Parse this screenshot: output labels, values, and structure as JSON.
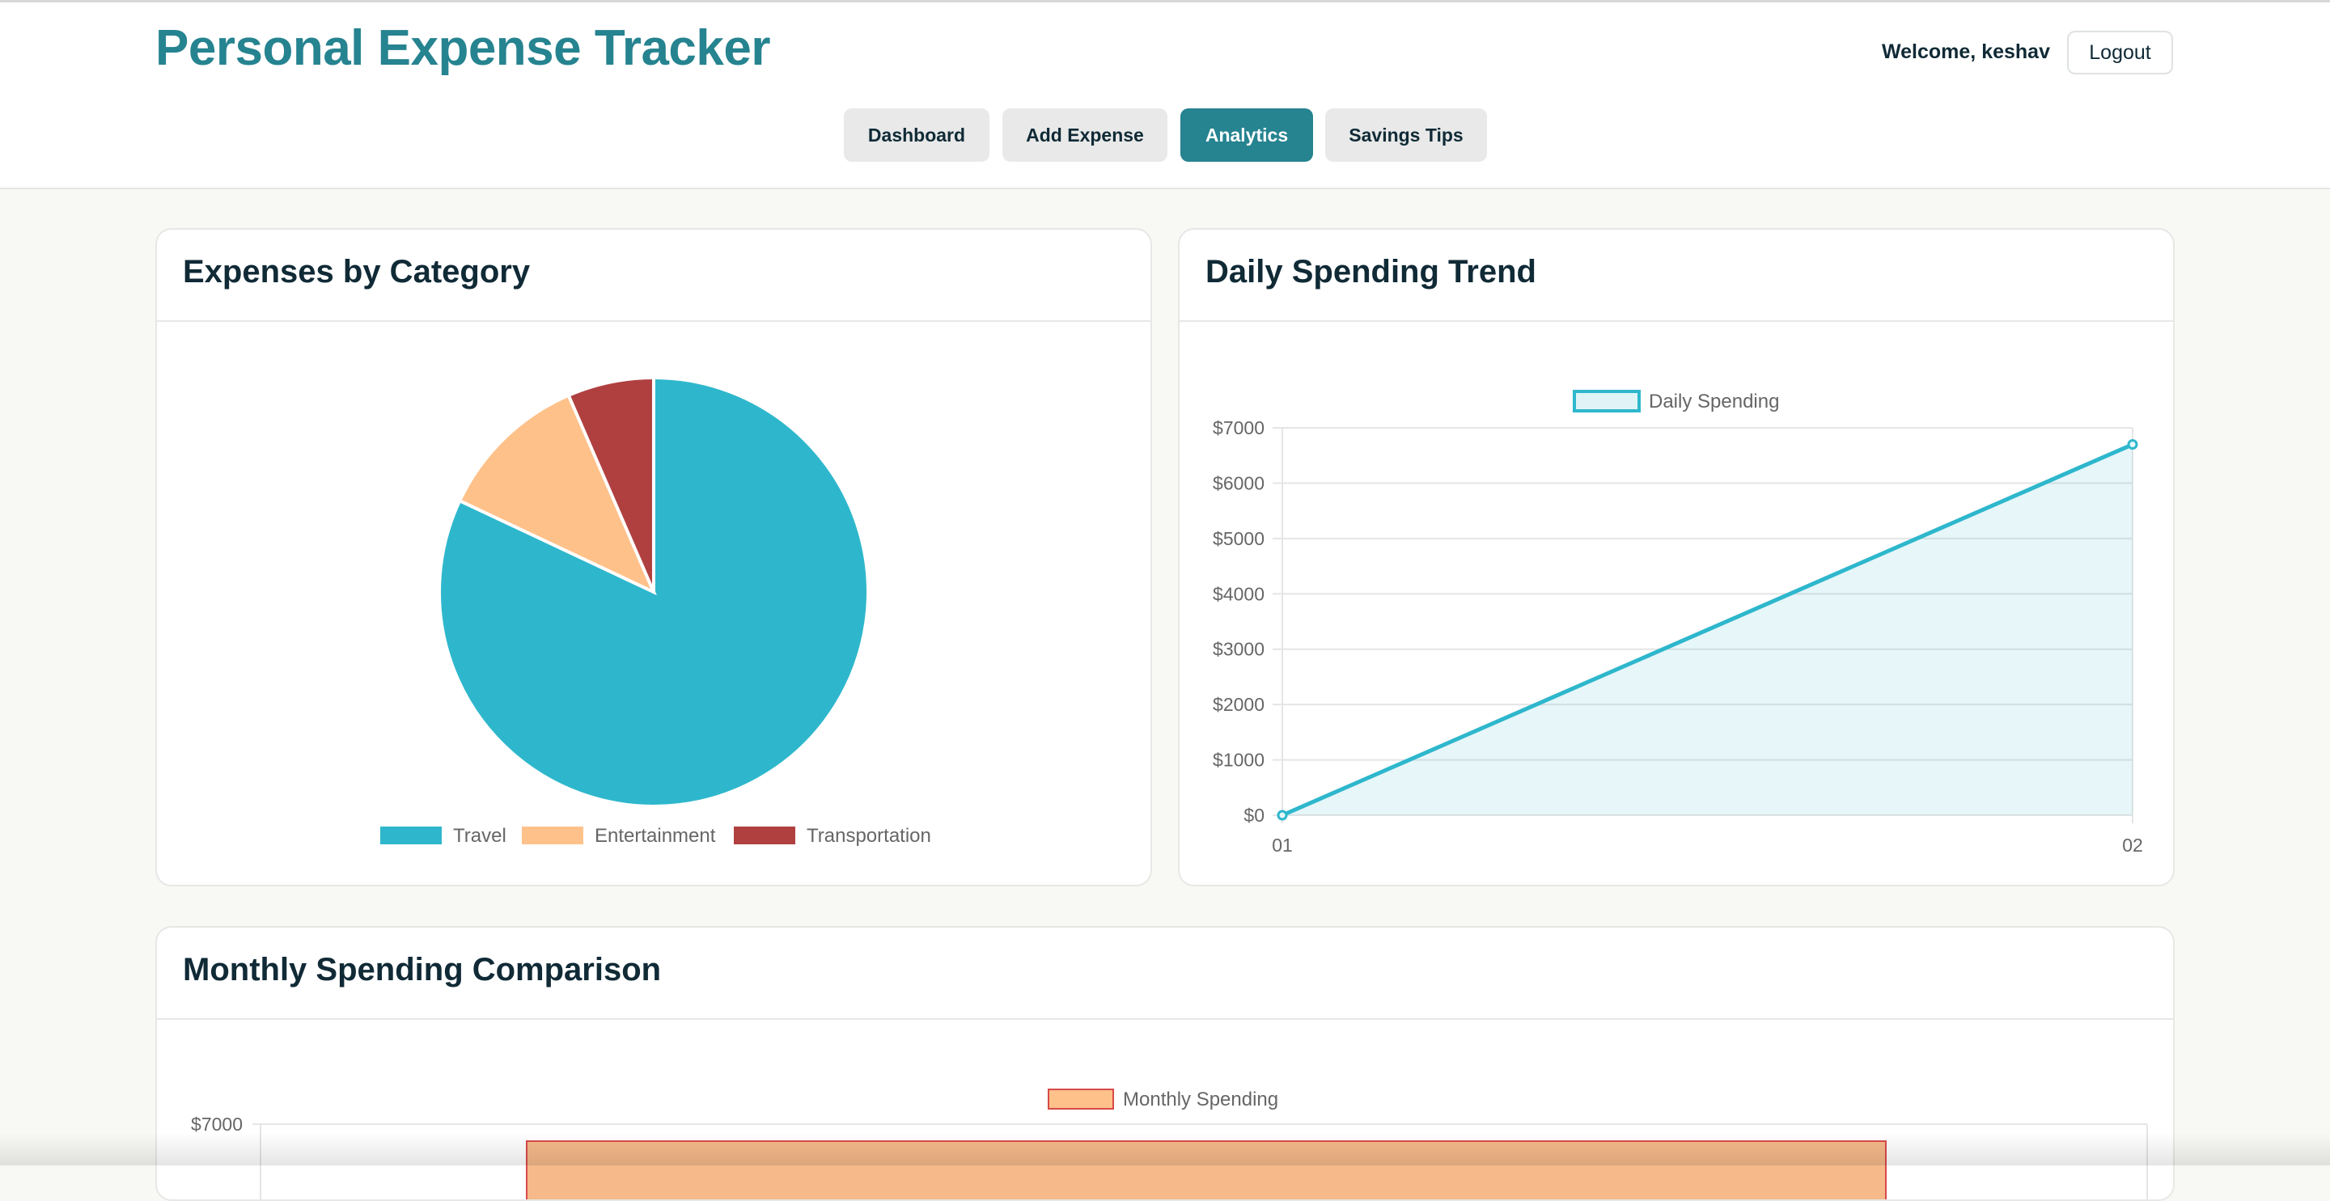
{
  "app": {
    "title": "Personal Expense Tracker"
  },
  "header": {
    "welcome": "Welcome, keshav",
    "logout_label": "Logout"
  },
  "nav": {
    "items": [
      {
        "label": "Dashboard",
        "active": false
      },
      {
        "label": "Add Expense",
        "active": false
      },
      {
        "label": "Analytics",
        "active": true
      },
      {
        "label": "Savings Tips",
        "active": false
      }
    ]
  },
  "colors": {
    "brand": "#268390",
    "travel": "#2eb7cc",
    "entertainment": "#ffc18a",
    "transportation": "#b04040",
    "line": "#2eb7cc"
  },
  "cards": {
    "category": {
      "title": "Expenses by Category"
    },
    "trend": {
      "title": "Daily Spending Trend"
    },
    "monthly": {
      "title": "Monthly Spending Comparison"
    }
  },
  "chart_data": [
    {
      "type": "pie",
      "categories": [
        "Travel",
        "Entertainment",
        "Transportation"
      ],
      "values": [
        82,
        11.5,
        6.5
      ],
      "colors": [
        "#2eb7cc",
        "#ffc18a",
        "#b04040"
      ],
      "legend": "bottom"
    },
    {
      "type": "area",
      "x": [
        "01",
        "02"
      ],
      "series": [
        {
          "name": "Daily Spending",
          "values": [
            0,
            6700
          ]
        }
      ],
      "ylim": [
        0,
        7000
      ],
      "yticks": [
        "$0",
        "$1000",
        "$2000",
        "$3000",
        "$4000",
        "$5000",
        "$6000",
        "$7000"
      ],
      "grid": true,
      "legend": "top"
    },
    {
      "type": "bar",
      "series": [
        {
          "name": "Monthly Spending",
          "values": [
            6700
          ]
        }
      ],
      "yticks": [
        "$7000"
      ],
      "legend": "top"
    }
  ]
}
